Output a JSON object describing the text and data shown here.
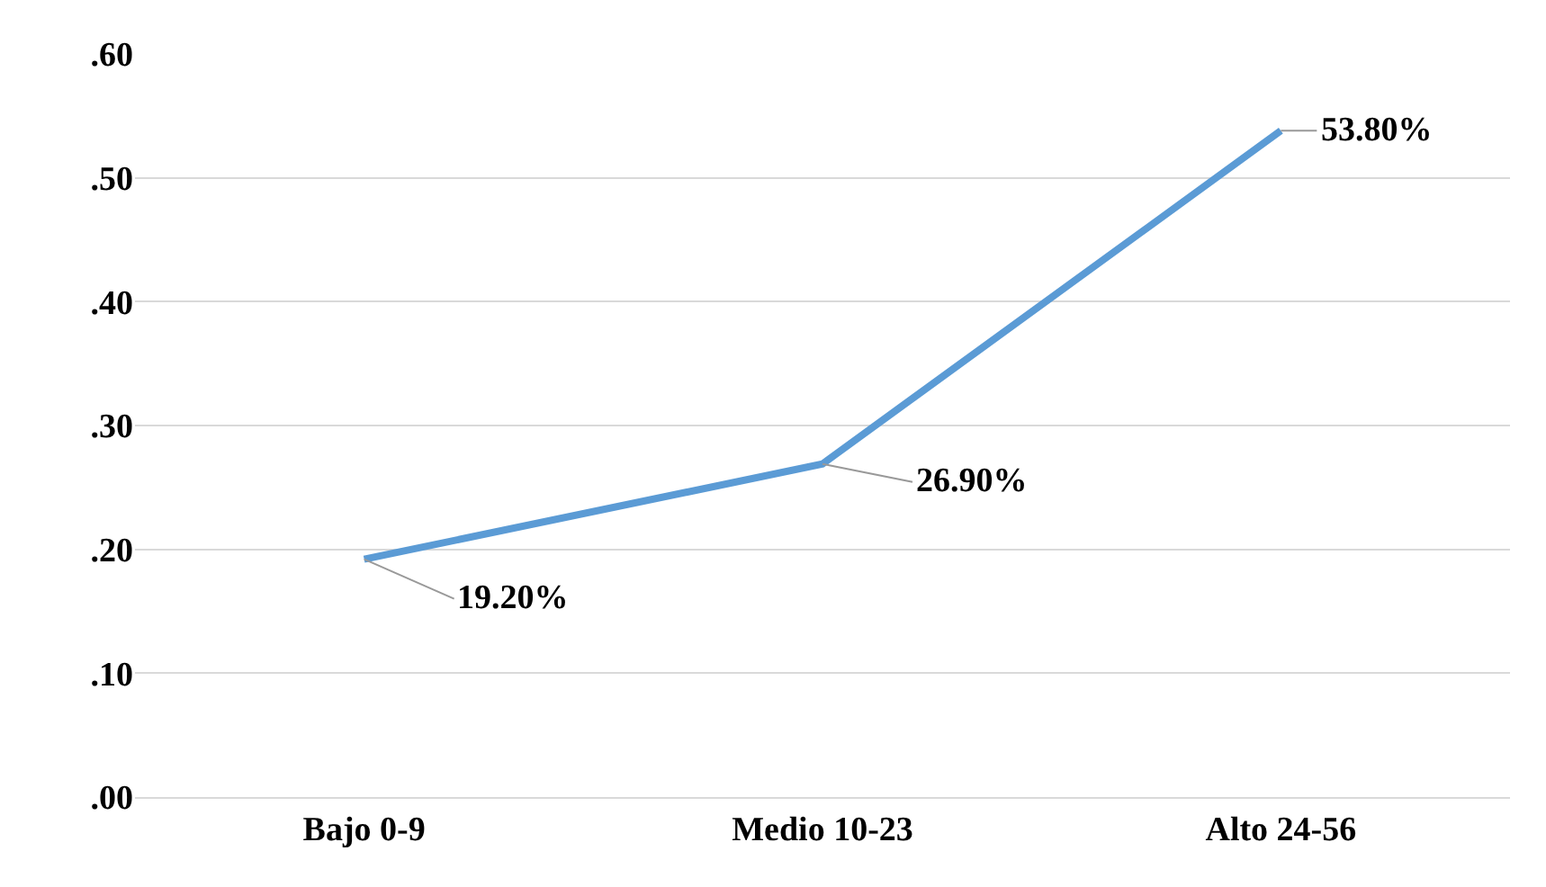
{
  "chart_data": {
    "type": "line",
    "categories": [
      "Bajo 0-9",
      "Medio 10-23",
      "Alto 24-56"
    ],
    "series": [
      {
        "color": "#5b9bd5",
        "values": [
          0.192,
          0.269,
          0.538
        ],
        "value_labels": [
          "19.20%",
          "26.90%",
          "53.80%"
        ]
      }
    ],
    "ylim": [
      0,
      0.6
    ],
    "yticks": [
      {
        "value": 0,
        "label": ".00"
      },
      {
        "value": 0.1,
        "label": ".10"
      },
      {
        "value": 0.2,
        "label": ".20"
      },
      {
        "value": 0.3,
        "label": ".30"
      },
      {
        "value": 0.4,
        "label": ".40"
      },
      {
        "value": 0.5,
        "label": ".50"
      },
      {
        "value": 0.6,
        "label": ".60"
      }
    ],
    "grid": "y",
    "marker": "none",
    "line_style": "solid"
  }
}
